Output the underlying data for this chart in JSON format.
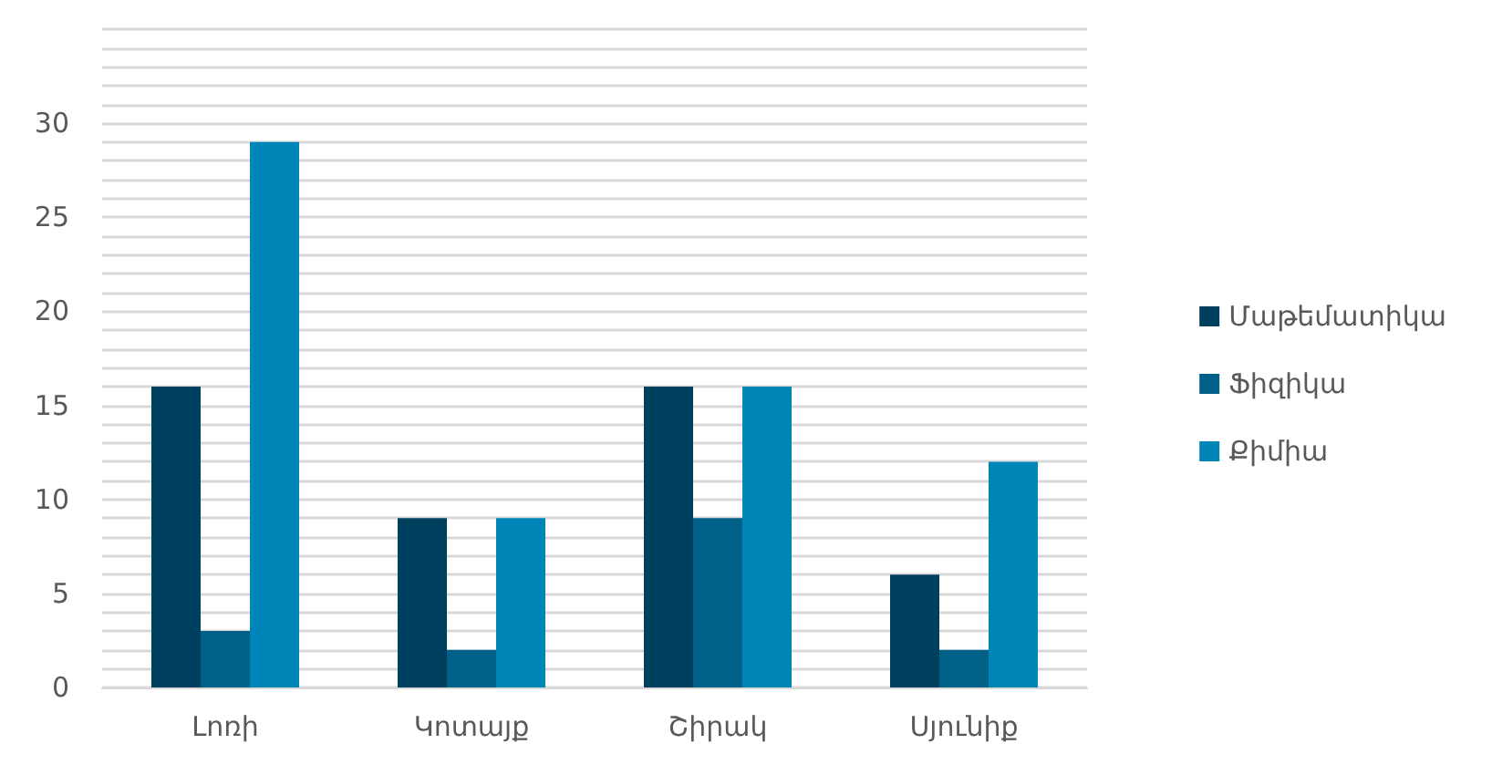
{
  "chart_data": {
    "type": "bar",
    "categories": [
      "Լոռի",
      "Կոտայք",
      "Շիրակ",
      "Սյունիք"
    ],
    "series": [
      {
        "name": "Մաթեմատիկա",
        "color": "#00405f",
        "values": [
          16,
          9,
          16,
          6
        ]
      },
      {
        "name": "Ֆիզիկա",
        "color": "#006087",
        "values": [
          3,
          2,
          9,
          2
        ]
      },
      {
        "name": "Քիմիա",
        "color": "#0085b8",
        "values": [
          29,
          9,
          16,
          12
        ]
      }
    ],
    "ylim": [
      0,
      35
    ],
    "yticks": [
      0,
      {
        "value": 1,
        "label": null
      },
      {
        "value": 2,
        "label": null
      },
      {
        "value": 3,
        "label": null
      },
      {
        "value": 4,
        "label": null
      },
      5,
      {
        "value": 6,
        "label": null
      },
      {
        "value": 7,
        "label": null
      },
      {
        "value": 8,
        "label": null
      },
      {
        "value": 9,
        "label": null
      },
      10,
      {
        "value": 11,
        "label": null
      },
      {
        "value": 12,
        "label": null
      },
      {
        "value": 13,
        "label": null
      },
      {
        "value": 14,
        "label": null
      },
      15,
      {
        "value": 16,
        "label": null
      },
      {
        "value": 17,
        "label": null
      },
      {
        "value": 18,
        "label": null
      },
      {
        "value": 19,
        "label": null
      },
      20,
      {
        "value": 21,
        "label": null
      },
      {
        "value": 22,
        "label": null
      },
      {
        "value": 23,
        "label": null
      },
      {
        "value": 24,
        "label": null
      },
      25,
      {
        "value": 26,
        "label": null
      },
      {
        "value": 27,
        "label": null
      },
      {
        "value": 28,
        "label": null
      },
      {
        "value": 29,
        "label": null
      },
      30,
      {
        "value": 31,
        "label": null
      },
      {
        "value": 32,
        "label": null
      },
      {
        "value": 33,
        "label": null
      },
      {
        "value": 34,
        "label": null
      },
      {
        "value": 35,
        "label": null
      }
    ],
    "grid": "y",
    "legend": "right"
  }
}
